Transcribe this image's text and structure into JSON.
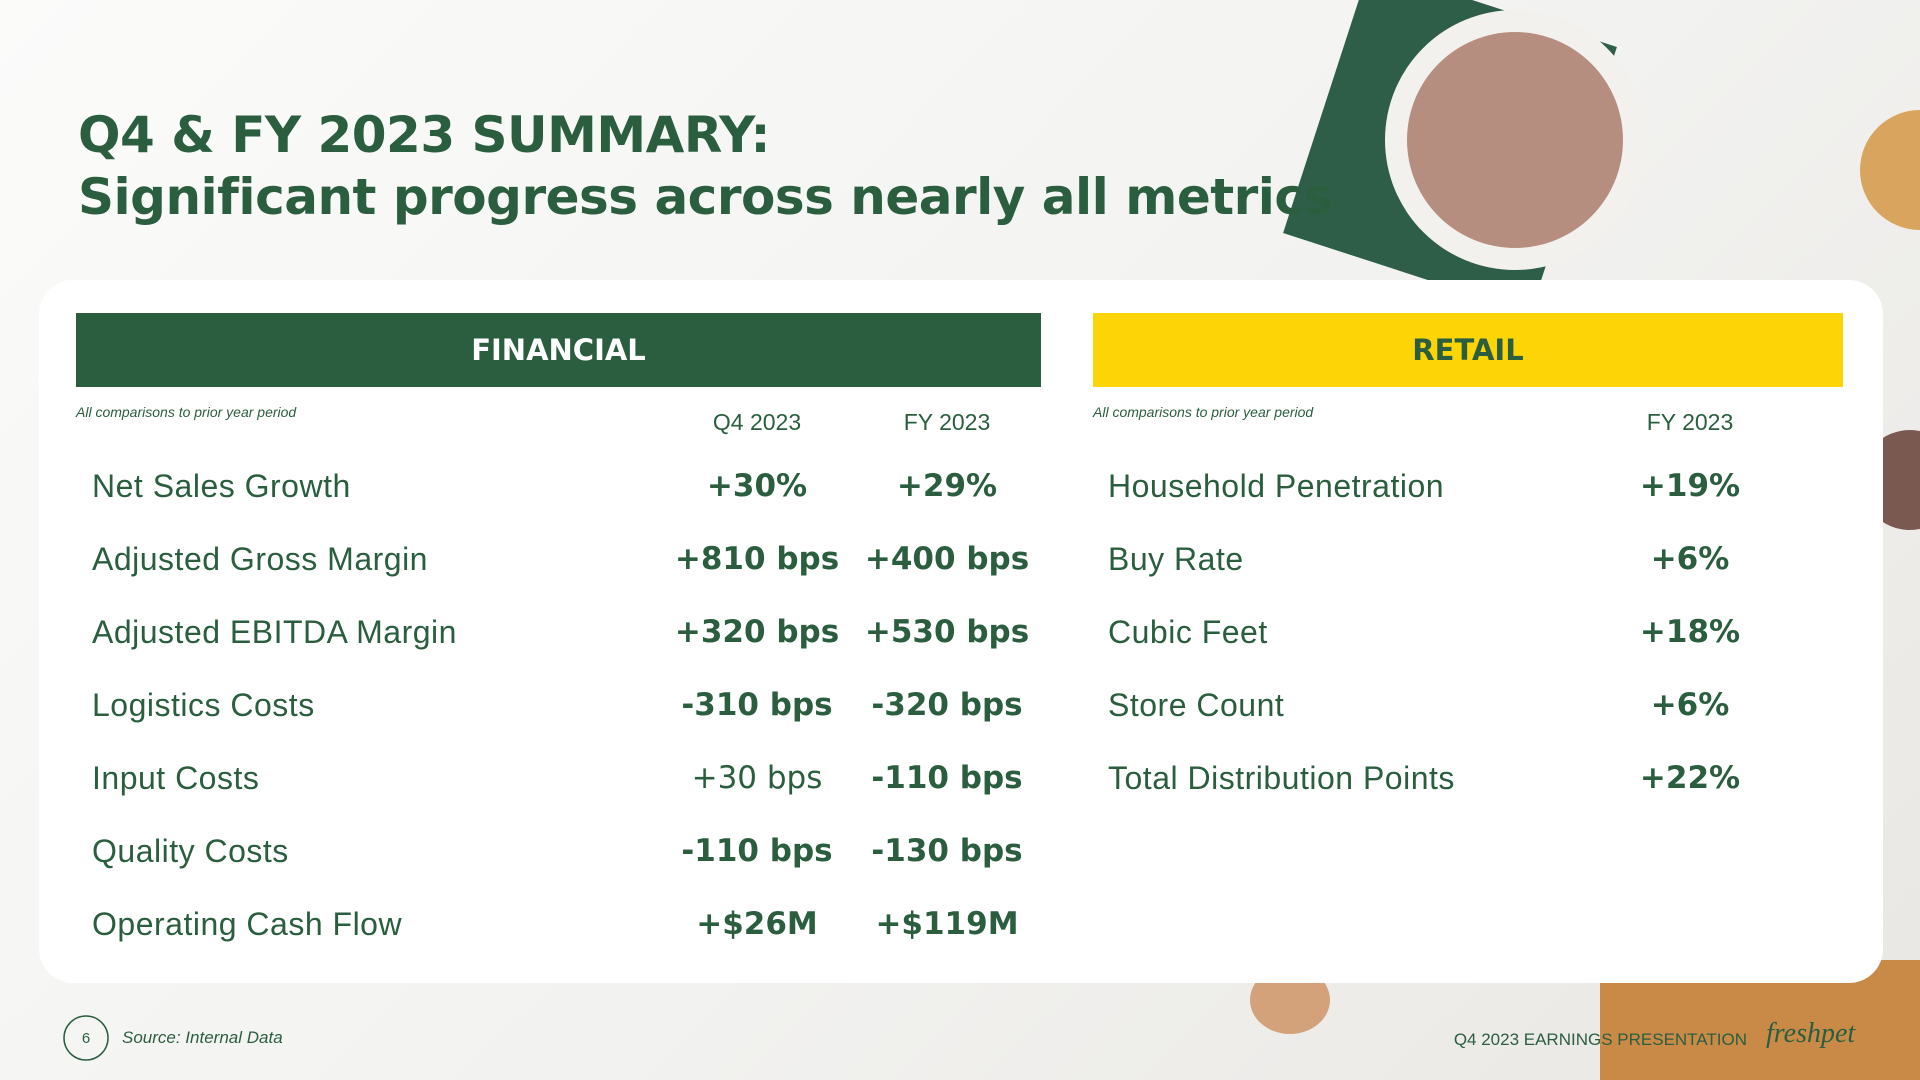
{
  "header": {
    "title": "Q4 & FY 2023 SUMMARY:",
    "subtitle": "Significant progress across nearly all metrics"
  },
  "financial": {
    "heading": "FINANCIAL",
    "note": "All comparisons to prior year period",
    "columns": [
      "Q4 2023",
      "FY 2023"
    ],
    "rows": [
      [
        "Net Sales Growth",
        "+30%",
        "+29%"
      ],
      [
        "Adjusted Gross Margin",
        "+810 bps",
        "+400 bps"
      ],
      [
        "Adjusted EBITDA Margin",
        "+320 bps",
        "+530 bps"
      ],
      [
        "Logistics Costs",
        "-310 bps",
        "-320 bps"
      ],
      [
        "Input Costs",
        "+30 bps",
        "-110 bps"
      ],
      [
        "Quality Costs",
        "-110 bps",
        "-130 bps"
      ],
      [
        "Operating Cash Flow",
        "+$26M",
        "+$119M"
      ]
    ]
  },
  "retail": {
    "heading": "RETAIL",
    "note": "All comparisons to prior year period",
    "columns": [
      "FY 2023"
    ],
    "rows": [
      [
        "Household Penetration",
        "+19%"
      ],
      [
        "Buy Rate",
        "+6%"
      ],
      [
        "Cubic Feet",
        "+18%"
      ],
      [
        "Store Count",
        "+6%"
      ],
      [
        "Total Distribution Points",
        "+22%"
      ]
    ]
  },
  "footer": {
    "page": "6",
    "source": "Source: Internal Data",
    "presentation": "Q4 2023 EARNINGS PRESENTATION",
    "logo": "freshpet"
  }
}
